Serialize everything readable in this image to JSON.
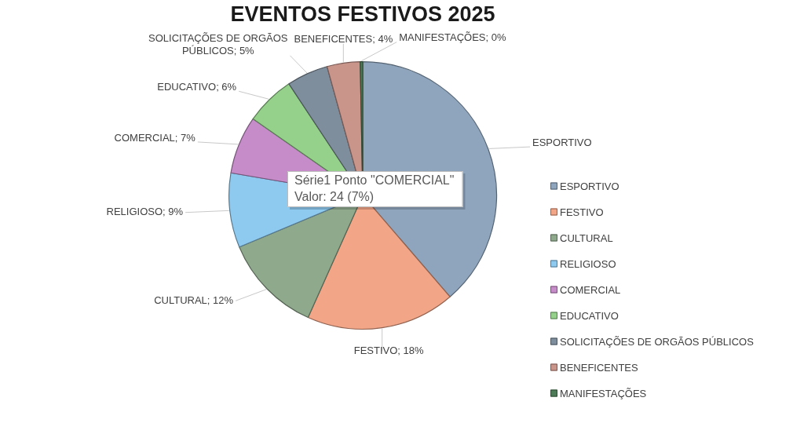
{
  "chart_data": {
    "type": "pie",
    "title": "EVENTOS FESTIVOS 2025",
    "categories": [
      "ESPORTIVO",
      "FESTIVO",
      "CULTURAL",
      "RELIGIOSO",
      "COMERCIAL",
      "EDUCATIVO",
      "SOLICITAÇÕES DE ORGÃOS PÚBLICOS",
      "BENEFICENTES",
      "MANIFESTAÇÕES"
    ],
    "values": [
      38.7,
      18,
      12,
      9,
      7,
      6,
      5,
      4,
      0.3
    ],
    "colors": [
      "#8ea5bd",
      "#f2a587",
      "#8fa98c",
      "#8ec9ef",
      "#c58cc9",
      "#95d18a",
      "#7f8e9c",
      "#c9948a",
      "#4e7b57"
    ],
    "value_labels": [
      null,
      "FESTIVO; 18%",
      "CULTURAL; 12%",
      "RELIGIOSO; 9%",
      "COMERCIAL; 7%",
      "EDUCATIVO; 6%",
      "SOLICITAÇÕES DE ORGÃOS PÚBLICOS; 5%",
      "BENEFICENTES; 4%",
      "MANIFESTAÇÕES; 0%"
    ],
    "legend": "right",
    "annotations": [
      "Série1 Ponto \"COMERCIAL\"\nValor: 24 (7%)"
    ]
  }
}
